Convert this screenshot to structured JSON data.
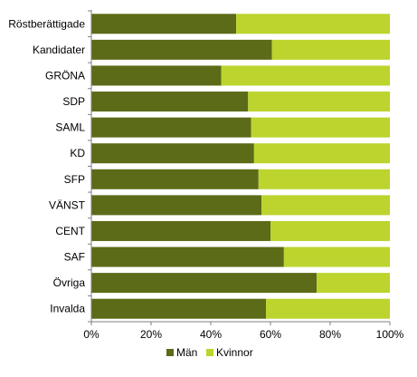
{
  "chart_data": {
    "type": "bar",
    "orientation": "horizontal",
    "stacked": true,
    "percent_stacked": true,
    "categories": [
      "Röstberättigade",
      "Kandidater",
      "GRÖNA",
      "SDP",
      "SAML",
      "KD",
      "SFP",
      "VÄNST",
      "CENT",
      "SAF",
      "Övriga",
      "Invalda"
    ],
    "series": [
      {
        "name": "Män",
        "color": "#5b6b17",
        "values": [
          48.5,
          60.5,
          43.5,
          52.5,
          53.5,
          54.5,
          56.0,
          57.0,
          60.0,
          64.5,
          75.5,
          58.5
        ]
      },
      {
        "name": "Kvinnor",
        "color": "#bcd42d",
        "values": [
          51.5,
          39.5,
          56.5,
          47.5,
          46.5,
          45.5,
          44.0,
          43.0,
          40.0,
          35.5,
          24.5,
          41.5
        ]
      }
    ],
    "xlim": [
      0,
      100
    ],
    "x_ticks": [
      "0%",
      "20%",
      "40%",
      "60%",
      "80%",
      "100%"
    ],
    "grid": false,
    "legend_position": "bottom"
  }
}
